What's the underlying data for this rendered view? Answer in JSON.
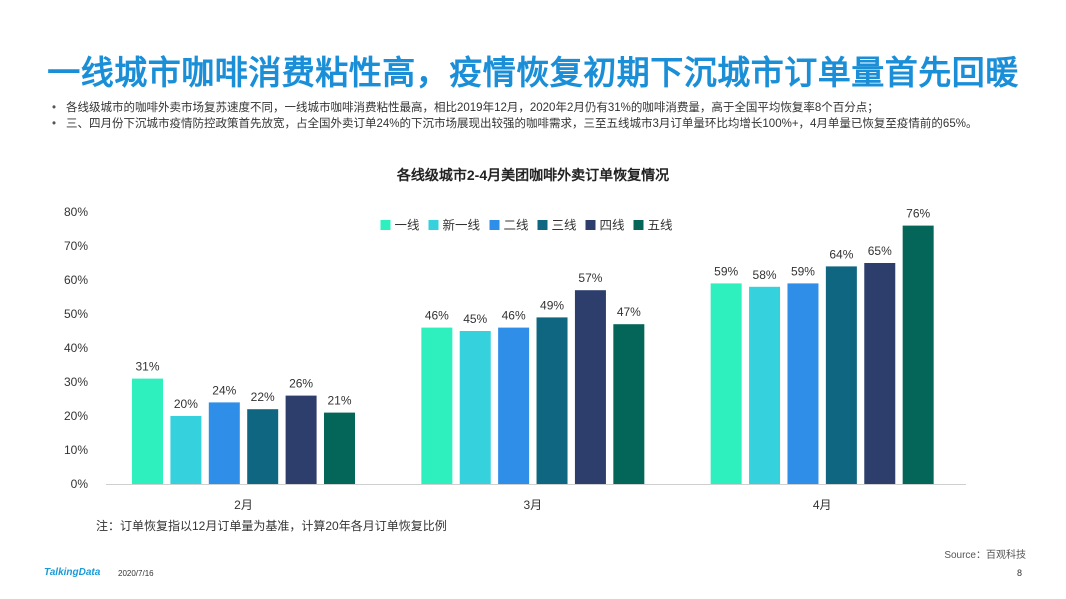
{
  "title": "一线城市咖啡消费粘性高，疫情恢复初期下沉城市订单量首先回暖",
  "bullets": [
    "各线级城市的咖啡外卖市场复苏速度不同，一线城市咖啡消费粘性最高，相比2019年12月，2020年2月仍有31%的咖啡消费量，高于全国平均恢复率8个百分点；",
    "三、四月份下沉城市疫情防控政策首先放宽，占全国外卖订单24%的下沉市场展现出较强的咖啡需求，三至五线城市3月订单量环比均增长100%+，4月单量已恢复至疫情前的65%。"
  ],
  "note": "注：订单恢复指以12月订单量为基准，计算20年各月订单恢复比例",
  "source": "Source：百观科技",
  "brand": "TalkingData",
  "date": "2020/7/16",
  "page_number": "8",
  "chart_data": {
    "type": "bar",
    "title": "各线级城市2-4月美团咖啡外卖订单恢复情况",
    "categories": [
      "2月",
      "3月",
      "4月"
    ],
    "series": [
      {
        "name": "一线",
        "color": "#2ef0bf",
        "values": [
          31,
          46,
          59
        ]
      },
      {
        "name": "新一线",
        "color": "#35d2de",
        "values": [
          20,
          45,
          58
        ]
      },
      {
        "name": "二线",
        "color": "#2e8ee8",
        "values": [
          24,
          46,
          59
        ]
      },
      {
        "name": "三线",
        "color": "#0f6680",
        "values": [
          22,
          49,
          64
        ]
      },
      {
        "name": "四线",
        "color": "#2d3e6c",
        "values": [
          26,
          57,
          65
        ]
      },
      {
        "name": "五线",
        "color": "#046658",
        "values": [
          21,
          47,
          76
        ]
      }
    ],
    "value_suffix": "%",
    "ylim": [
      0,
      80
    ],
    "yticks": [
      "0%",
      "10%",
      "20%",
      "30%",
      "40%",
      "50%",
      "60%",
      "70%",
      "80%"
    ],
    "grid": false,
    "legend": "top-center",
    "xlabel": "",
    "ylabel": ""
  }
}
